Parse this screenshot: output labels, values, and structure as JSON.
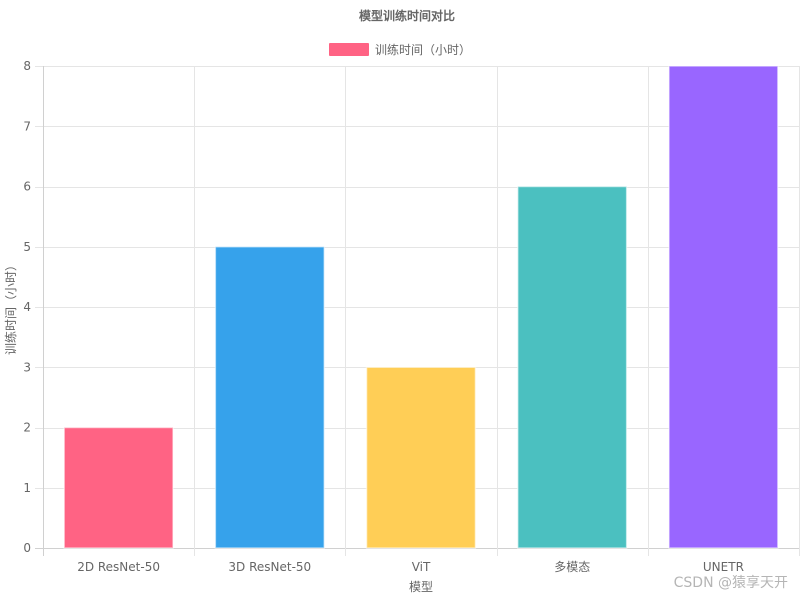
{
  "chart_data": {
    "type": "bar",
    "title": "模型训练时间对比",
    "xlabel": "模型",
    "ylabel": "训练时间（小时）",
    "categories": [
      "2D ResNet-50",
      "3D ResNet-50",
      "ViT",
      "多模态",
      "UNETR"
    ],
    "series": [
      {
        "name": "训练时间（小时）",
        "values": [
          2,
          5,
          3,
          6,
          8
        ],
        "colors": [
          "#ff6384",
          "#36a2eb",
          "#ffce56",
          "#4bc0c0",
          "#9966ff"
        ]
      }
    ],
    "ylim": [
      0,
      8
    ],
    "yticks": [
      0,
      1,
      2,
      3,
      4,
      5,
      6,
      7,
      8
    ],
    "grid": true,
    "legend_position": "top"
  },
  "watermark": "CSDN @猿享天开"
}
